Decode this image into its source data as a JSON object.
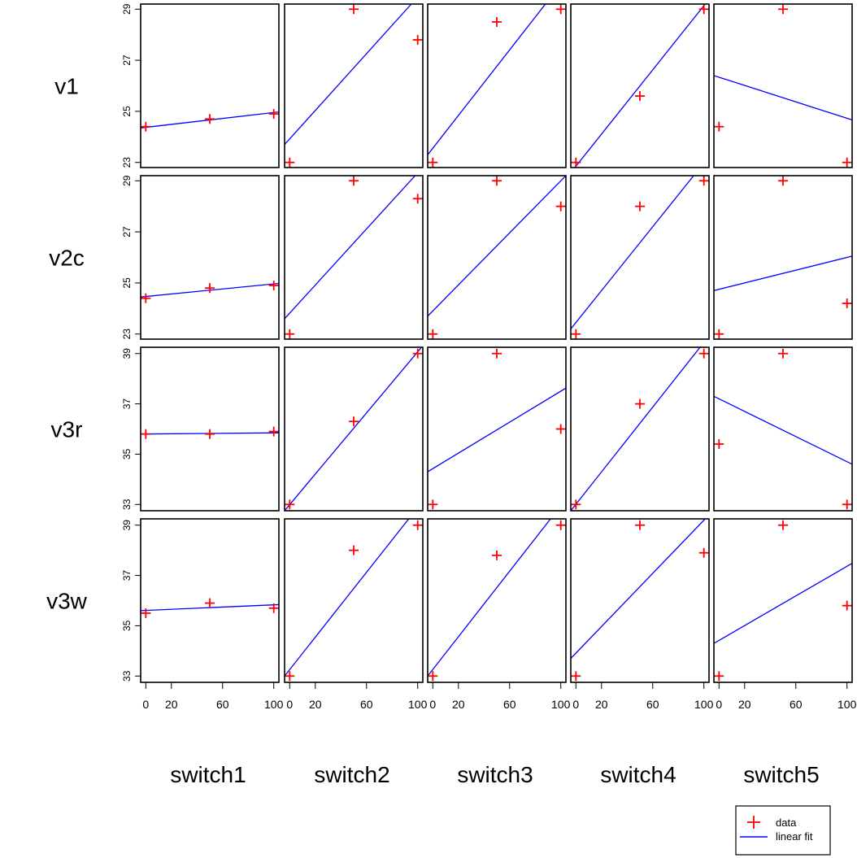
{
  "chart_data": {
    "type": "scatter",
    "layout": "grid",
    "x_vars": [
      "switch1",
      "switch2",
      "switch3",
      "switch4",
      "switch5"
    ],
    "y_vars": [
      "v1",
      "v2c",
      "v3r",
      "v3w"
    ],
    "x_ticks": [
      "0",
      "20",
      "60",
      "100"
    ],
    "x_tick_values": [
      0,
      20,
      60,
      100
    ],
    "xlim": [
      -4,
      104
    ],
    "y_axes": [
      {
        "ticks": [
          "23",
          "25",
          "27",
          "29"
        ],
        "tick_values": [
          23,
          25,
          27,
          29
        ],
        "ylim": [
          22.8,
          29.2
        ]
      },
      {
        "ticks": [
          "23",
          "25",
          "27",
          "29"
        ],
        "tick_values": [
          23,
          25,
          27,
          29
        ],
        "ylim": [
          22.8,
          29.2
        ]
      },
      {
        "ticks": [
          "33",
          "35",
          "37",
          "39"
        ],
        "tick_values": [
          33,
          35,
          37,
          39
        ],
        "ylim": [
          32.75,
          39.25
        ]
      },
      {
        "ticks": [
          "33",
          "35",
          "37",
          "39"
        ],
        "tick_values": [
          33,
          35,
          37,
          39
        ],
        "ylim": [
          32.75,
          39.25
        ]
      }
    ],
    "panels": [
      [
        {
          "points": [
            [
              0,
              24.4
            ],
            [
              50,
              24.7
            ],
            [
              100,
              24.9
            ]
          ],
          "fit": [
            [
              -4,
              24.35
            ],
            [
              108,
              25.0
            ]
          ]
        },
        {
          "points": [
            [
              0,
              23.0
            ],
            [
              50,
              29.0
            ],
            [
              100,
              27.8
            ]
          ],
          "fit": [
            [
              -4,
              23.7
            ],
            [
              95,
              29.2
            ]
          ]
        },
        {
          "points": [
            [
              0,
              23.0
            ],
            [
              50,
              28.5
            ],
            [
              100,
              29.0
            ]
          ],
          "fit": [
            [
              -4,
              23.3
            ],
            [
              88,
              29.2
            ]
          ]
        },
        {
          "points": [
            [
              0,
              23.0
            ],
            [
              50,
              25.6
            ],
            [
              100,
              29.0
            ]
          ],
          "fit": [
            [
              -4,
              22.6
            ],
            [
              101,
              29.2
            ]
          ]
        },
        {
          "points": [
            [
              0,
              24.4
            ],
            [
              50,
              29.0
            ],
            [
              100,
              23.0
            ]
          ],
          "fit": [
            [
              -4,
              26.4
            ],
            [
              108,
              24.6
            ]
          ]
        }
      ],
      [
        {
          "points": [
            [
              0,
              24.4
            ],
            [
              50,
              24.8
            ],
            [
              100,
              24.9
            ]
          ],
          "fit": [
            [
              -4,
              24.45
            ],
            [
              108,
              25.0
            ]
          ]
        },
        {
          "points": [
            [
              0,
              23.0
            ],
            [
              50,
              29.0
            ],
            [
              100,
              28.3
            ]
          ],
          "fit": [
            [
              -4,
              23.6
            ],
            [
              98,
              29.2
            ]
          ]
        },
        {
          "points": [
            [
              0,
              23.0
            ],
            [
              50,
              29.0
            ],
            [
              100,
              28.0
            ]
          ],
          "fit": [
            [
              -4,
              23.7
            ],
            [
              104,
              29.2
            ]
          ]
        },
        {
          "points": [
            [
              0,
              23.0
            ],
            [
              50,
              28.0
            ],
            [
              100,
              29.0
            ]
          ],
          "fit": [
            [
              -4,
              23.2
            ],
            [
              92,
              29.2
            ]
          ]
        },
        {
          "points": [
            [
              0,
              23.0
            ],
            [
              50,
              29.0
            ],
            [
              100,
              24.2
            ]
          ],
          "fit": [
            [
              -4,
              24.7
            ],
            [
              108,
              26.1
            ]
          ]
        }
      ],
      [
        {
          "points": [
            [
              0,
              35.8
            ],
            [
              50,
              35.8
            ],
            [
              100,
              35.9
            ]
          ],
          "fit": [
            [
              -4,
              35.8
            ],
            [
              108,
              35.85
            ]
          ]
        },
        {
          "points": [
            [
              0,
              33.0
            ],
            [
              50,
              36.3
            ],
            [
              100,
              39.0
            ]
          ],
          "fit": [
            [
              -4,
              32.75
            ],
            [
              103,
              39.25
            ]
          ]
        },
        {
          "points": [
            [
              0,
              33.0
            ],
            [
              50,
              39.0
            ],
            [
              100,
              36.0
            ]
          ],
          "fit": [
            [
              -4,
              34.3
            ],
            [
              108,
              37.75
            ]
          ]
        },
        {
          "points": [
            [
              0,
              33.0
            ],
            [
              50,
              37.0
            ],
            [
              100,
              39.0
            ]
          ],
          "fit": [
            [
              -4,
              32.75
            ],
            [
              97,
              39.25
            ]
          ]
        },
        {
          "points": [
            [
              0,
              35.4
            ],
            [
              50,
              39.0
            ],
            [
              100,
              33.0
            ]
          ],
          "fit": [
            [
              -4,
              37.3
            ],
            [
              108,
              34.5
            ]
          ]
        }
      ],
      [
        {
          "points": [
            [
              0,
              35.5
            ],
            [
              50,
              35.9
            ],
            [
              100,
              35.7
            ]
          ],
          "fit": [
            [
              -4,
              35.6
            ],
            [
              108,
              35.85
            ]
          ]
        },
        {
          "points": [
            [
              0,
              33.0
            ],
            [
              50,
              38.0
            ],
            [
              100,
              39.0
            ]
          ],
          "fit": [
            [
              -4,
              33.0
            ],
            [
              93,
              39.25
            ]
          ]
        },
        {
          "points": [
            [
              0,
              33.0
            ],
            [
              50,
              37.8
            ],
            [
              100,
              39.0
            ]
          ],
          "fit": [
            [
              -4,
              33.0
            ],
            [
              92,
              39.25
            ]
          ]
        },
        {
          "points": [
            [
              0,
              33.0
            ],
            [
              50,
              39.0
            ],
            [
              100,
              37.9
            ]
          ],
          "fit": [
            [
              -4,
              33.7
            ],
            [
              101,
              39.25
            ]
          ]
        },
        {
          "points": [
            [
              0,
              33.0
            ],
            [
              50,
              39.0
            ],
            [
              100,
              35.8
            ]
          ],
          "fit": [
            [
              -4,
              34.3
            ],
            [
              108,
              37.6
            ]
          ]
        }
      ]
    ],
    "legend": {
      "position": "bottom-right",
      "entries": [
        "data",
        "linear fit"
      ]
    },
    "colors": {
      "data": "#ff0000",
      "fit": "#0000ff",
      "frame": "#000000"
    }
  }
}
